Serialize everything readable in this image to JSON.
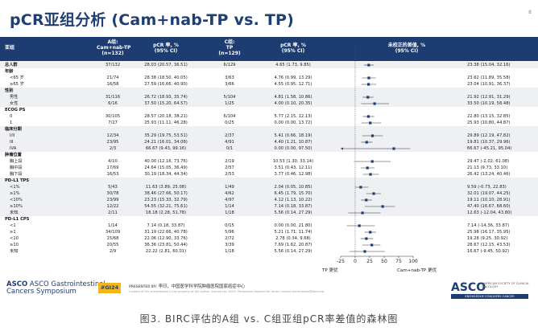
{
  "slide": {
    "title": "pCR亚组分析 (Cam+nab-TP vs. TP)",
    "slide_number": "8"
  },
  "header": {
    "subgroup": "亚组",
    "arm_a": "A组:\nCam+nab-TP\n(n=132)",
    "arm_a_rate": "pCR 率, %\n(95% CI)",
    "arm_c": "C组:\nTP\n(n=129)",
    "arm_c_rate": "pCR 率, %\n(95% CI)",
    "difference": "未校正的差值, %\n(95% CI)"
  },
  "chart_data": {
    "type": "forest",
    "xlim": [
      -25,
      100
    ],
    "xticks": [
      -25,
      0,
      25,
      50,
      75,
      100
    ],
    "xlabel_left": "TP 更优",
    "xlabel_right": "Cam+nab-TP 更优",
    "rows": [
      {
        "label": "总人群",
        "kind": "top",
        "a_n": "37/132",
        "a_rate": "28.03 (20.57, 36.51)",
        "c_n": "6/129",
        "c_rate": "4.65 (1.73, 9.85)",
        "diff": 23.38,
        "lo": 15.04,
        "hi": 32.16,
        "diff_text": "23.38 (15.04, 32.16)"
      },
      {
        "label": "年龄",
        "kind": "group"
      },
      {
        "label": "<65 岁",
        "kind": "item",
        "a_n": "21/74",
        "a_rate": "28.38 (18.50, 40.05)",
        "c_n": "3/63",
        "c_rate": "4.76 (0.99, 13.29)",
        "diff": 23.62,
        "lo": 11.89,
        "hi": 35.58,
        "diff_text": "23.62 (11.89, 35.58)"
      },
      {
        "label": "≥65 岁",
        "kind": "item",
        "a_n": "16/58",
        "a_rate": "27.59 (16.66, 40.90)",
        "c_n": "3/66",
        "c_rate": "4.55 (0.95, 12.71)",
        "diff": 23.04,
        "lo": 10.91,
        "hi": 36.37,
        "diff_text": "23.04 (10.91, 36.37)"
      },
      {
        "label": "性别",
        "kind": "group"
      },
      {
        "label": "男性",
        "kind": "item",
        "a_n": "31/116",
        "a_rate": "26.72 (18.93, 35.74)",
        "c_n": "5/104",
        "c_rate": "4.81 (1.58, 10.86)",
        "diff": 21.92,
        "lo": 12.91,
        "hi": 31.29,
        "diff_text": "21.92 (12.91, 31.29)"
      },
      {
        "label": "女性",
        "kind": "item",
        "a_n": "6/16",
        "a_rate": "37.50 (15.20, 64.57)",
        "c_n": "1/25",
        "c_rate": "4.00 (0.10, 20.35)",
        "diff": 33.5,
        "lo": 10.19,
        "hi": 58.48,
        "diff_text": "33.50 (10.19, 58.48)"
      },
      {
        "label": "ECOG PS",
        "kind": "group"
      },
      {
        "label": "0",
        "kind": "item",
        "a_n": "30/105",
        "a_rate": "28.57 (20.18, 38.21)",
        "c_n": "6/104",
        "c_rate": "5.77 (2.15, 12.13)",
        "diff": 22.8,
        "lo": 13.15,
        "hi": 32.85,
        "diff_text": "22.80 (13.15, 32.85)"
      },
      {
        "label": "1",
        "kind": "item",
        "a_n": "7/27",
        "a_rate": "25.93 (11.11, 46.28)",
        "c_n": "0/25",
        "c_rate": "0.00 (0.00, 13.72)",
        "diff": 25.93,
        "lo": 10.8,
        "hi": 44.87,
        "diff_text": "25.93 (10.80, 44.87)"
      },
      {
        "label": "临床分期",
        "kind": "group"
      },
      {
        "label": "I/II",
        "kind": "item",
        "a_n": "12/34",
        "a_rate": "35.29 (19.75, 53.51)",
        "c_n": "2/37",
        "c_rate": "5.41 (0.66, 18.19)",
        "diff": 29.89,
        "lo": 12.19,
        "hi": 47.82,
        "diff_text": "29.89 (12.19, 47.82)"
      },
      {
        "label": "III",
        "kind": "item",
        "a_n": "23/95",
        "a_rate": "24.21 (16.01, 34.08)",
        "c_n": "4/91",
        "c_rate": "4.40 (1.21, 10.87)",
        "diff": 19.81,
        "lo": 10.37,
        "hi": 29.96,
        "diff_text": "19.81 (10.37, 29.96)"
      },
      {
        "label": "IVA",
        "kind": "item",
        "a_n": "2/3",
        "a_rate": "66.67 (9.43, 99.16)",
        "c_n": "0/1",
        "c_rate": "0.00 (0.00, 97.50)",
        "diff": 66.67,
        "lo": -45.21,
        "hi": 95.04,
        "diff_text": "66.67 (-45.21, 95.04)"
      },
      {
        "label": "肿瘤位置",
        "kind": "group"
      },
      {
        "label": "胸上段",
        "kind": "item",
        "a_n": "4/10",
        "a_rate": "40.00 (12.16, 73.76)",
        "c_n": "2/19",
        "c_rate": "10.53 (1.30, 33.14)",
        "diff": 29.47,
        "lo": -2.02,
        "hi": 61.08,
        "diff_text": "29.47 (-2.02, 61.08)"
      },
      {
        "label": "胸中段",
        "kind": "item",
        "a_n": "17/69",
        "a_rate": "24.64 (15.05, 36.49)",
        "c_n": "2/57",
        "c_rate": "3.51 (0.43, 12.11)",
        "diff": 21.13,
        "lo": 9.73,
        "hi": 33.1,
        "diff_text": "21.13 (9.73, 33.10)"
      },
      {
        "label": "胸下段",
        "kind": "item",
        "a_n": "16/53",
        "a_rate": "30.19 (18.34, 44.34)",
        "c_n": "2/53",
        "c_rate": "3.77 (0.46, 12.98)",
        "diff": 26.42,
        "lo": 13.24,
        "hi": 40.46,
        "diff_text": "26.42 (13.24, 40.46)"
      },
      {
        "label": "PD-L1 TPS",
        "kind": "group"
      },
      {
        "label": "<1%",
        "kind": "item",
        "a_n": "5/43",
        "a_rate": "11.63 (3.89, 25.08)",
        "c_n": "1/49",
        "c_rate": "2.04 (0.05, 10.85)",
        "diff": 9.59,
        "lo": -0.73,
        "hi": 22.83,
        "diff_text": "9.59 (-0.73, 22.83)"
      },
      {
        "label": "≥1%",
        "kind": "item",
        "a_n": "30/78",
        "a_rate": "38.46 (27.66, 50.17)",
        "c_n": "4/62",
        "c_rate": "6.45 (1.79, 15.70)",
        "diff": 32.01,
        "lo": 19.07,
        "hi": 44.25,
        "diff_text": "32.01 (19.07, 44.25)"
      },
      {
        "label": "<10%",
        "kind": "item",
        "a_n": "23/99",
        "a_rate": "23.23 (15.33, 32.79)",
        "c_n": "4/97",
        "c_rate": "4.12 (1.13, 10.22)",
        "diff": 19.11,
        "lo": 10.1,
        "hi": 28.91,
        "diff_text": "19.11 (10.10, 28.91)"
      },
      {
        "label": "≥10%",
        "kind": "item",
        "a_n": "12/22",
        "a_rate": "54.55 (32.21, 75.61)",
        "c_n": "1/14",
        "c_rate": "7.14 (0.18, 33.87)",
        "diff": 47.4,
        "lo": 16.67,
        "hi": 68.6,
        "diff_text": "47.40 (16.67, 68.60)"
      },
      {
        "label": "未知",
        "kind": "item",
        "a_n": "2/11",
        "a_rate": "18.18 (2.28, 51.78)",
        "c_n": "1/18",
        "c_rate": "5.56 (0.14, 27.29)",
        "diff": 12.63,
        "lo": -12.04,
        "hi": 43.8,
        "diff_text": "12.63 (-12.04, 43.80)"
      },
      {
        "label": "PD-L1 CPS",
        "kind": "group"
      },
      {
        "label": "<1",
        "kind": "item",
        "a_n": "1/14",
        "a_rate": "7.14 (0.18, 33.87)",
        "c_n": "0/15",
        "c_rate": "0.00 (0.00, 21.80)",
        "diff": 7.14,
        "lo": -14.36,
        "hi": 33.87,
        "diff_text": "7.14 (-14.36, 33.87)"
      },
      {
        "label": "≥1",
        "kind": "item",
        "a_n": "34/109",
        "a_rate": "31.19 (22.66, 40.78)",
        "c_n": "5/96",
        "c_rate": "5.21 (1.71, 11.74)",
        "diff": 25.98,
        "lo": 16.17,
        "hi": 35.95,
        "diff_text": "25.98 (16.17, 35.95)"
      },
      {
        "label": "<10",
        "kind": "item",
        "a_n": "15/68",
        "a_rate": "22.06 (12.90, 33.76)",
        "c_n": "2/72",
        "c_rate": "2.78 (0.34, 9.68)",
        "diff": 19.28,
        "lo": 9.25,
        "hi": 30.92,
        "diff_text": "19.28 (9.25, 30.92)"
      },
      {
        "label": "≥10",
        "kind": "item",
        "a_n": "20/55",
        "a_rate": "36.36 (23.81, 50.44)",
        "c_n": "3/39",
        "c_rate": "7.69 (1.62, 20.87)",
        "diff": 28.67,
        "lo": 12.15,
        "hi": 43.53,
        "diff_text": "28.67 (12.15, 43.53)"
      },
      {
        "label": "未知",
        "kind": "item",
        "a_n": "2/9",
        "a_rate": "22.22 (2.81, 60.01)",
        "c_n": "1/18",
        "c_rate": "5.56 (0.14, 27.29)",
        "diff": 16.67,
        "lo": -9.45,
        "hi": 50.92,
        "diff_text": "16.67 (-9.45, 50.92)"
      }
    ]
  },
  "footer": {
    "asco_gi_line1": "ASCO Gastrointestinal",
    "asco_gi_line2": "Cancers Symposium",
    "hashtag": "#GI24",
    "presented_by_label": "PRESENTED BY:",
    "presenter": "李印，中国医学科学院肿瘤医院国家癌症中心",
    "permission_note": "Content of this presentation is the property of the author, licensed by ASCO. Permission required for reuse; contact permissions@asco.org",
    "asco_logo": "ASCO",
    "asco_sub": "AMERICAN SOCIETY OF CLINICAL ONCOLOGY",
    "asco_tagline": "KNOWLEDGE CONQUERS CANCER"
  },
  "caption": "图3. BIRC评估的A组 vs. C组亚组pCR率差值的森林图",
  "colors": {
    "navy": "#1d3d72",
    "band": "#eef0f3",
    "accent": "#f2b51a"
  }
}
